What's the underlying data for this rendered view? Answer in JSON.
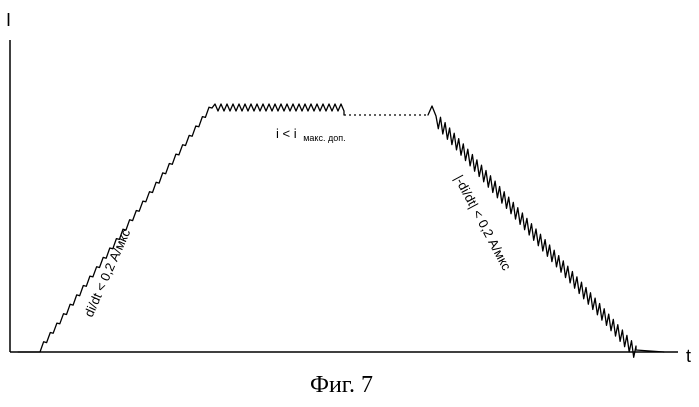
{
  "axes": {
    "y_label": "I",
    "x_label": "t"
  },
  "annotations": {
    "rise_label": "di/dt < 0,2 А/мкс",
    "plateau_label_main": "i < i",
    "plateau_label_sub": "макс. доп.",
    "fall_label": "|-di/dt| < 0,2 А/мкс"
  },
  "caption": "Фиг. 7"
}
